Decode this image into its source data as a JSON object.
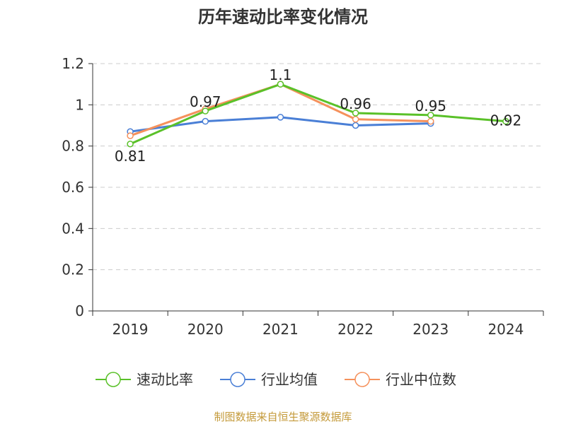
{
  "chart_data": {
    "type": "line",
    "title": "历年速动比率变化情况",
    "categories": [
      "2019",
      "2020",
      "2021",
      "2022",
      "2023",
      "2024"
    ],
    "ylim": [
      0,
      1.2
    ],
    "yticks": [
      "0",
      "0.2",
      "0.4",
      "0.6",
      "0.8",
      "1",
      "1.2"
    ],
    "grid": true,
    "legend_position": "bottom",
    "series": [
      {
        "name": "速动比率",
        "color": "#5ac129",
        "values": [
          0.81,
          0.97,
          1.1,
          0.96,
          0.95,
          0.92
        ],
        "data_labels": [
          "0.81",
          "0.97",
          "1.1",
          "0.96",
          "0.95",
          "0.92"
        ]
      },
      {
        "name": "行业均值",
        "color": "#4a7fd6",
        "values": [
          0.87,
          0.92,
          0.94,
          0.9,
          0.91,
          null
        ]
      },
      {
        "name": "行业中位数",
        "color": "#f5915c",
        "values": [
          0.85,
          0.98,
          1.1,
          0.93,
          0.92,
          null
        ]
      }
    ],
    "source": "制图数据来自恒生聚源数据库"
  }
}
